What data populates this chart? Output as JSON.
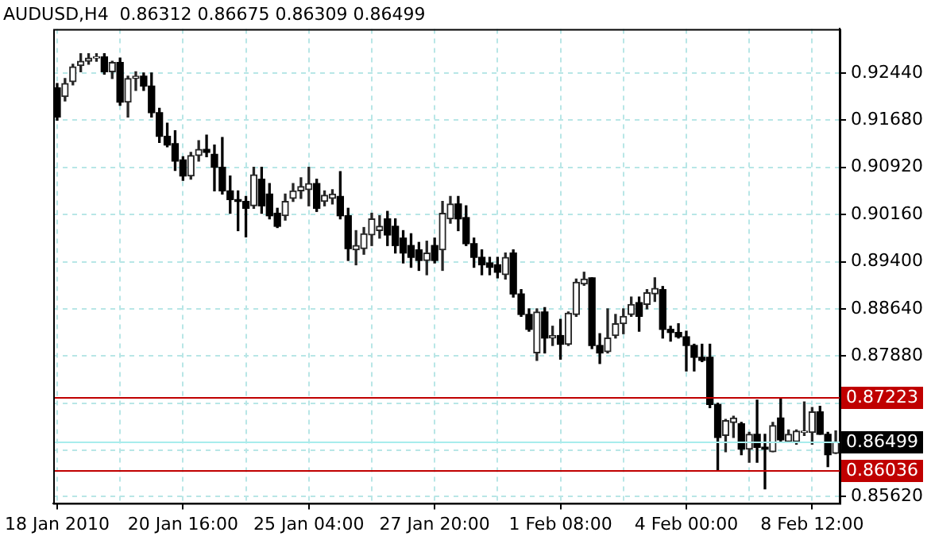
{
  "chart_data": {
    "type": "candlestick",
    "title": "AUDUSD,H4  0.86312 0.86675 0.86309 0.86499",
    "categories": [
      "18 Jan 2010",
      null,
      null,
      null,
      null,
      null,
      null,
      null,
      null,
      null,
      null,
      null,
      null,
      null,
      null,
      null,
      "20 Jan 16:00",
      null,
      null,
      null,
      null,
      null,
      null,
      null,
      null,
      null,
      null,
      null,
      null,
      null,
      null,
      null,
      "25 Jan 04:00",
      null,
      null,
      null,
      null,
      null,
      null,
      null,
      null,
      null,
      null,
      null,
      null,
      null,
      null,
      null,
      "27 Jan 20:00",
      null,
      null,
      null,
      null,
      null,
      null,
      null,
      null,
      null,
      null,
      null,
      null,
      null,
      null,
      null,
      "1 Feb 08:00",
      null,
      null,
      null,
      null,
      null,
      null,
      null,
      null,
      null,
      null,
      null,
      null,
      null,
      null,
      null,
      "4 Feb 00:00",
      null,
      null,
      null,
      null,
      null,
      null,
      null,
      null,
      null,
      null,
      null,
      null,
      null,
      null,
      null,
      "8 Feb 12:00",
      null,
      null,
      null
    ],
    "ohlc": [
      [
        0.922,
        0.9227,
        0.9168,
        0.9173
      ],
      [
        0.9206,
        0.9235,
        0.9199,
        0.9227
      ],
      [
        0.923,
        0.9258,
        0.9225,
        0.9254
      ],
      [
        0.9256,
        0.9275,
        0.9246,
        0.9263
      ],
      [
        0.9263,
        0.9275,
        0.9258,
        0.9268
      ],
      [
        0.9268,
        0.9275,
        0.9263,
        0.927
      ],
      [
        0.927,
        0.9275,
        0.9242,
        0.9246
      ],
      [
        0.9246,
        0.9263,
        0.9235,
        0.9261
      ],
      [
        0.9261,
        0.9268,
        0.9192,
        0.9197
      ],
      [
        0.9197,
        0.9239,
        0.9173,
        0.9235
      ],
      [
        0.9235,
        0.9246,
        0.9216,
        0.9239
      ],
      [
        0.9239,
        0.9244,
        0.9216,
        0.9223
      ],
      [
        0.9223,
        0.9244,
        0.9173,
        0.918
      ],
      [
        0.918,
        0.9187,
        0.9132,
        0.9142
      ],
      [
        0.9142,
        0.9163,
        0.9125,
        0.9128
      ],
      [
        0.913,
        0.9151,
        0.9087,
        0.9102
      ],
      [
        0.9104,
        0.9109,
        0.9071,
        0.9078
      ],
      [
        0.9078,
        0.9116,
        0.9073,
        0.9111
      ],
      [
        0.9111,
        0.9135,
        0.9102,
        0.9121
      ],
      [
        0.9121,
        0.9144,
        0.9109,
        0.9116
      ],
      [
        0.9113,
        0.9128,
        0.9054,
        0.9092
      ],
      [
        0.9092,
        0.914,
        0.9049,
        0.9054
      ],
      [
        0.9054,
        0.9078,
        0.9018,
        0.904
      ],
      [
        0.904,
        0.9054,
        0.899,
        0.9037
      ],
      [
        0.9037,
        0.9045,
        0.898,
        0.9026
      ],
      [
        0.903,
        0.9092,
        0.9026,
        0.908
      ],
      [
        0.9073,
        0.9092,
        0.9018,
        0.903
      ],
      [
        0.9049,
        0.9066,
        0.9009,
        0.9014
      ],
      [
        0.9018,
        0.9026,
        0.8995,
        0.8997
      ],
      [
        0.9014,
        0.9049,
        0.9007,
        0.9037
      ],
      [
        0.9042,
        0.9066,
        0.9037,
        0.9054
      ],
      [
        0.9054,
        0.9075,
        0.9042,
        0.9061
      ],
      [
        0.9056,
        0.9092,
        0.903,
        0.9066
      ],
      [
        0.9066,
        0.9073,
        0.9021,
        0.9026
      ],
      [
        0.9037,
        0.9054,
        0.903,
        0.9047
      ],
      [
        0.9042,
        0.9056,
        0.9033,
        0.9049
      ],
      [
        0.9045,
        0.9085,
        0.9009,
        0.9014
      ],
      [
        0.9014,
        0.9026,
        0.8942,
        0.8961
      ],
      [
        0.8959,
        0.899,
        0.8935,
        0.8966
      ],
      [
        0.8961,
        0.8995,
        0.8952,
        0.8985
      ],
      [
        0.8983,
        0.9018,
        0.8966,
        0.9009
      ],
      [
        0.899,
        0.9014,
        0.8978,
        0.8997
      ],
      [
        0.9009,
        0.9021,
        0.8966,
        0.8983
      ],
      [
        0.8997,
        0.9009,
        0.8954,
        0.8966
      ],
      [
        0.8978,
        0.899,
        0.8938,
        0.8954
      ],
      [
        0.8966,
        0.8985,
        0.8931,
        0.8947
      ],
      [
        0.8959,
        0.8971,
        0.8926,
        0.8942
      ],
      [
        0.8942,
        0.8973,
        0.8919,
        0.8954
      ],
      [
        0.8966,
        0.8978,
        0.8938,
        0.8942
      ],
      [
        0.8959,
        0.9037,
        0.8926,
        0.9018
      ],
      [
        0.9009,
        0.9045,
        0.9002,
        0.9033
      ],
      [
        0.9033,
        0.9045,
        0.899,
        0.9009
      ],
      [
        0.9011,
        0.903,
        0.8966,
        0.8969
      ],
      [
        0.8969,
        0.8978,
        0.8931,
        0.8947
      ],
      [
        0.8947,
        0.8959,
        0.8919,
        0.8935
      ],
      [
        0.8938,
        0.8947,
        0.8919,
        0.8931
      ],
      [
        0.8935,
        0.8947,
        0.8914,
        0.8923
      ],
      [
        0.8919,
        0.8954,
        0.8912,
        0.8947
      ],
      [
        0.8954,
        0.8959,
        0.8883,
        0.8888
      ],
      [
        0.8888,
        0.8895,
        0.8852,
        0.8855
      ],
      [
        0.8855,
        0.8864,
        0.8828,
        0.8831
      ],
      [
        0.8793,
        0.8864,
        0.8781,
        0.8859
      ],
      [
        0.8859,
        0.8866,
        0.8793,
        0.8817
      ],
      [
        0.8817,
        0.8836,
        0.8805,
        0.8821
      ],
      [
        0.8821,
        0.8847,
        0.8783,
        0.8807
      ],
      [
        0.8807,
        0.8859,
        0.8805,
        0.8857
      ],
      [
        0.8855,
        0.8912,
        0.8852,
        0.8907
      ],
      [
        0.8904,
        0.8923,
        0.8902,
        0.8912
      ],
      [
        0.8914,
        0.8914,
        0.88,
        0.8805
      ],
      [
        0.8805,
        0.8824,
        0.8776,
        0.8793
      ],
      [
        0.8795,
        0.8864,
        0.8793,
        0.8817
      ],
      [
        0.8821,
        0.8855,
        0.8817,
        0.884
      ],
      [
        0.884,
        0.8864,
        0.8824,
        0.8852
      ],
      [
        0.8855,
        0.8883,
        0.8852,
        0.8871
      ],
      [
        0.8874,
        0.8883,
        0.8828,
        0.8852
      ],
      [
        0.8871,
        0.8895,
        0.8864,
        0.889
      ],
      [
        0.8888,
        0.8914,
        0.8876,
        0.8897
      ],
      [
        0.8895,
        0.89,
        0.8817,
        0.8831
      ],
      [
        0.8831,
        0.8836,
        0.8812,
        0.8826
      ],
      [
        0.8826,
        0.884,
        0.8817,
        0.8819
      ],
      [
        0.8819,
        0.8828,
        0.8764,
        0.8805
      ],
      [
        0.8805,
        0.8807,
        0.8764,
        0.8786
      ],
      [
        0.8786,
        0.8807,
        0.8779,
        0.8781
      ],
      [
        0.8786,
        0.8807,
        0.8705,
        0.871
      ],
      [
        0.871,
        0.8712,
        0.8603,
        0.8657
      ],
      [
        0.866,
        0.8686,
        0.8634,
        0.8684
      ],
      [
        0.8681,
        0.8691,
        0.8657,
        0.8688
      ],
      [
        0.8679,
        0.8681,
        0.8629,
        0.8638
      ],
      [
        0.8638,
        0.8665,
        0.8617,
        0.8662
      ],
      [
        0.8662,
        0.8717,
        0.8617,
        0.8641
      ],
      [
        0.8641,
        0.8662,
        0.8574,
        0.8638
      ],
      [
        0.8634,
        0.8681,
        0.8634,
        0.8676
      ],
      [
        0.8688,
        0.8719,
        0.865,
        0.8653
      ],
      [
        0.865,
        0.8669,
        0.865,
        0.8662
      ],
      [
        0.865,
        0.8669,
        0.8646,
        0.8667
      ],
      [
        0.8665,
        0.8714,
        0.866,
        0.8667
      ],
      [
        0.8665,
        0.8705,
        0.8646,
        0.8698
      ],
      [
        0.8698,
        0.8707,
        0.8662,
        0.8662
      ],
      [
        0.8662,
        0.8665,
        0.861,
        0.8629
      ],
      [
        0.86312,
        0.86675,
        0.86309,
        0.86499
      ]
    ],
    "ylim": [
      0.8551,
      0.9315
    ],
    "yticks": [
      {
        "value": 0.9244,
        "label": "0.92440"
      },
      {
        "value": 0.9168,
        "label": "0.91680"
      },
      {
        "value": 0.9092,
        "label": "0.90920"
      },
      {
        "value": 0.9016,
        "label": "0.90160"
      },
      {
        "value": 0.894,
        "label": "0.89400"
      },
      {
        "value": 0.8864,
        "label": "0.88640"
      },
      {
        "value": 0.8788,
        "label": "0.87880"
      },
      {
        "value": 0.8712,
        "label": null
      },
      {
        "value": 0.8636,
        "label": null
      },
      {
        "value": 0.8562,
        "label": "0.85620"
      }
    ],
    "ref_lines": [
      {
        "axis": "y",
        "value": 0.87223,
        "label": "0.87223",
        "color": "#c00000"
      },
      {
        "axis": "y",
        "value": 0.86499,
        "label": "0.86499",
        "color": "#a8ecec"
      },
      {
        "axis": "y",
        "value": 0.86036,
        "label": "0.86036",
        "color": "#c00000"
      }
    ],
    "grid": true,
    "legend": false
  }
}
